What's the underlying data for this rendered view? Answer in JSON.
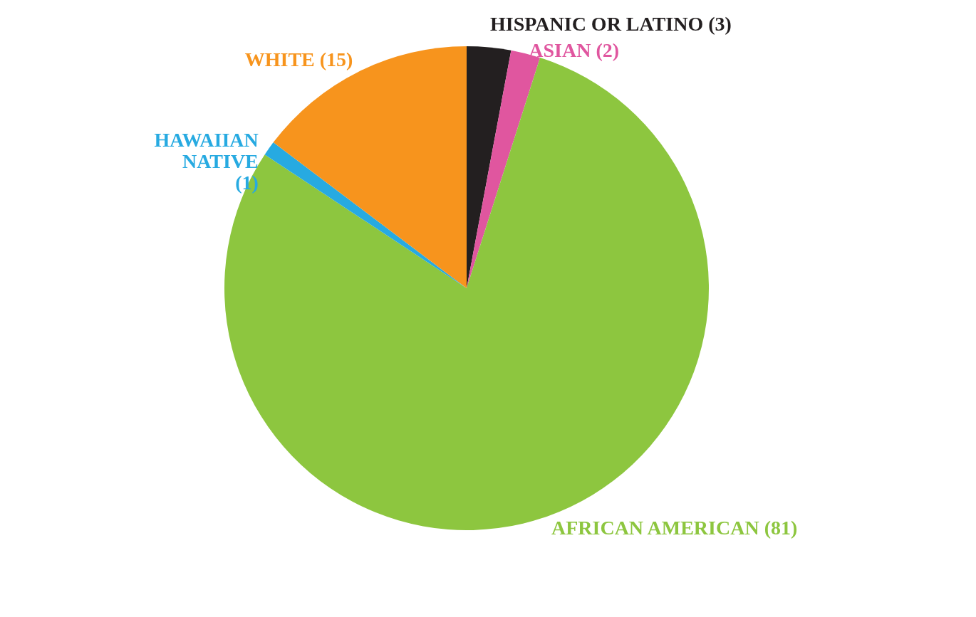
{
  "chart_data": {
    "type": "pie",
    "categories": [
      "HISPANIC OR LATINO",
      "ASIAN",
      "AFRICAN AMERICAN",
      "HAWAIIAN NATIVE",
      "WHITE"
    ],
    "values": [
      3,
      2,
      81,
      1,
      15
    ],
    "value_labels": [
      "(3)",
      "(2)",
      "(81)",
      "(1)",
      "(15)"
    ],
    "colors": [
      "#231f20",
      "#e0569f",
      "#8dc63f",
      "#27aae1",
      "#f7941d"
    ],
    "legend": false
  }
}
